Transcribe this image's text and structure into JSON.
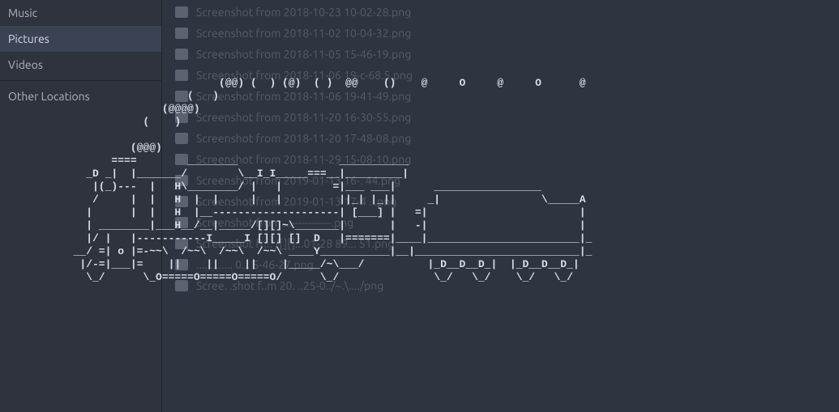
{
  "sidebar": {
    "items": [
      {
        "label": "Music",
        "active": false
      },
      {
        "label": "Pictures",
        "active": true
      },
      {
        "label": "Videos",
        "active": false
      },
      {
        "label": "Other Locations",
        "active": false,
        "separator_before": true
      }
    ]
  },
  "files": [
    {
      "name": "Screenshot from 2018-10-23 10-02-28.png"
    },
    {
      "name": "Screenshot from 2018-11-02 10-04-32.png"
    },
    {
      "name": "Screenshot from 2018-11-05 15-46-19.png"
    },
    {
      "name": "Screenshot from 2018-11-06 19-c-68.5.png"
    },
    {
      "name": "Screenshot from 2018-11-06 19-41-49.png"
    },
    {
      "name": "Screenshot from 2018-11-20 16-30-55.png"
    },
    {
      "name": "Screenshot from 2018-11-20 17-48-08.png"
    },
    {
      "name": "Screenshot from 2018-11-29 15-08-10.png"
    },
    {
      "name": "Screenshot from 2019-01-13 16-. 44.png"
    },
    {
      "name": "Screenshot from 2019-01-13 17-4 . .png"
    },
    {
      "name": "Screenshot from ...------------.png"
    },
    {
      "name": "Screenshot fr... /[][]...01-28 89... 51.png"
    },
    {
      "name": "............. 0... 5-46-27.png"
    },
    {
      "name": "Scree. .shot f..m 20. ..25-0../~.\\..../png"
    }
  ],
  "ascii_art": "                         (@@) (  ) (@)  ( )  @@    ()    @     O     @     O      @\n                    (   )\n                (@@@@)\n             (    )\n\n           (@@@)\n        ====        ________                ___________\n    _D _|  |_______/        \\__I_I_____===__|_________|\n     |(_)---  |   H\\________/ |   |        =|___ ___|      _________________\n     /     |  |   H  |  |     |   |         ||_| |_||     _|                \\_____A\n    |      |  |   H  |__--------------------| [___] |   =|                        |\n    | ________|___H__/__|_____/[][]~\\_______|       |   -|                        |\n    |/ |   |-----------I_____I [][] []  D   |=======|____|________________________|_\n  __/ =| o |=-~~\\  /~~\\  /~~\\  /~~\\ ____Y___________|__|__________________________|_\n   |/-=|___|=    ||    ||    ||    |_____/~\\___/          |_D__D__D_|  |_D__D__D_|\n    \\_/      \\_O=====O=====O=====O/      \\_/               \\_/   \\_/    \\_/   \\_/"
}
